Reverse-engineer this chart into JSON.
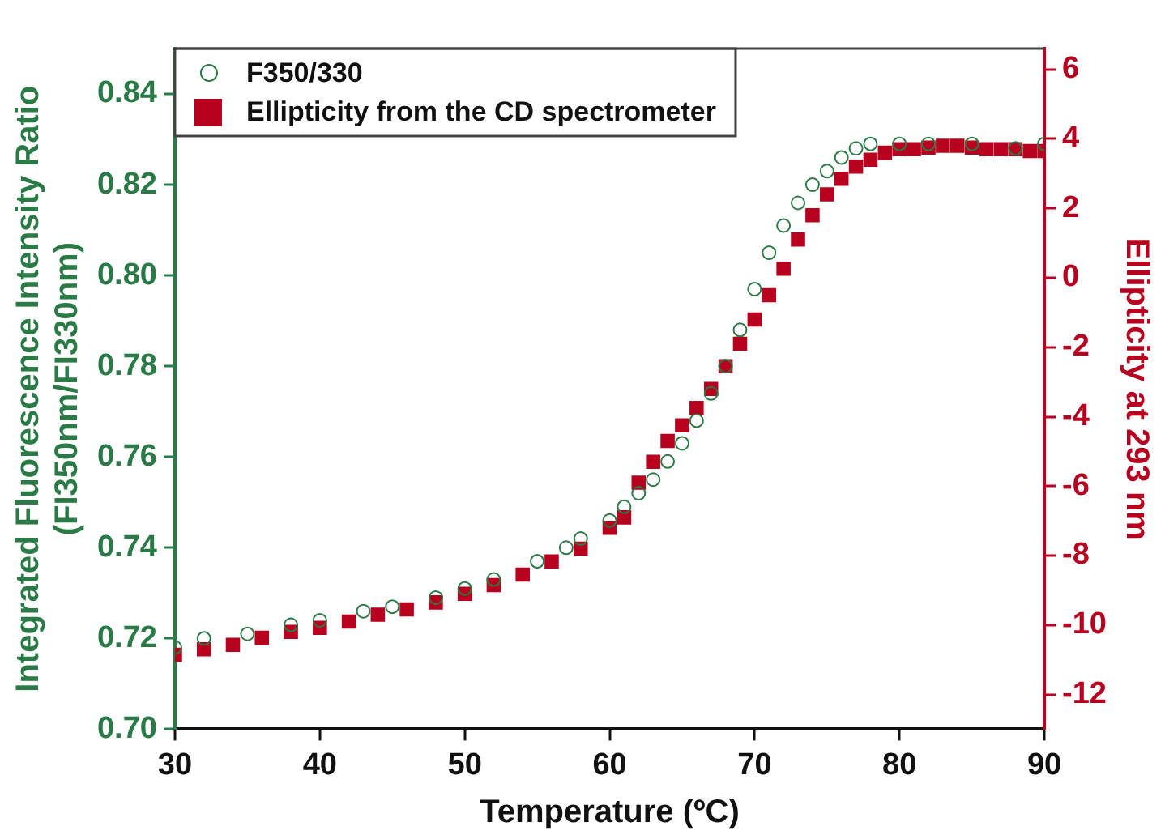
{
  "chart_data": {
    "type": "scatter",
    "xlabel": "Temperature (ºC)",
    "ylabel": "Integrated Fluorescence Intensity Ratio\n(FI350nm/FI330nm)",
    "y2label": "Ellipticity at 293 nm",
    "xlim": [
      30,
      90
    ],
    "xticks": [
      30,
      40,
      50,
      60,
      70,
      80,
      90
    ],
    "ylim": [
      0.7,
      0.85
    ],
    "yticks": [
      {
        "value": 0.7,
        "label": "0.70"
      },
      0.72,
      0.74,
      0.76,
      0.78,
      {
        "value": 0.8,
        "label": "0.80"
      },
      0.82,
      0.84
    ],
    "y2lim": [
      -13,
      6.6
    ],
    "y2ticks": [
      -12,
      -10,
      -8,
      -6,
      -4,
      -2,
      0,
      2,
      4,
      6
    ],
    "grid": false,
    "legend": "top left",
    "series": [
      {
        "name": "F350/330",
        "color": "#2a7a45",
        "marker": "circle",
        "x": [
          30,
          32,
          35,
          38,
          40,
          43,
          45,
          48,
          50,
          52,
          55,
          57,
          58,
          60,
          61,
          62,
          63,
          64,
          65,
          66,
          67,
          68,
          69,
          70,
          71,
          72,
          73,
          74,
          75,
          76,
          77,
          78,
          80,
          82,
          85,
          88,
          90
        ],
        "values": [
          0.718,
          0.72,
          0.721,
          0.723,
          0.724,
          0.726,
          0.727,
          0.729,
          0.731,
          0.733,
          0.737,
          0.74,
          0.742,
          0.746,
          0.749,
          0.752,
          0.755,
          0.759,
          0.763,
          0.768,
          0.774,
          0.78,
          0.788,
          0.797,
          0.805,
          0.811,
          0.816,
          0.82,
          0.823,
          0.826,
          0.828,
          0.829,
          0.829,
          0.829,
          0.829,
          0.828,
          0.829
        ]
      },
      {
        "name": "Ellipticity from the CD spectrometer",
        "color": "#b8001f",
        "marker": "square",
        "axis": "y2",
        "x": [
          30,
          32,
          34,
          36,
          38,
          40,
          42,
          44,
          46,
          48,
          50,
          52,
          54,
          56,
          58,
          60,
          61,
          62,
          63,
          64,
          65,
          66,
          67,
          68,
          69,
          70,
          71,
          72,
          73,
          74,
          75,
          76,
          77,
          78,
          79,
          80,
          81,
          82,
          83,
          84,
          85,
          86,
          87,
          88,
          89,
          90
        ],
        "values": [
          -10.86,
          -10.7,
          -10.57,
          -10.37,
          -10.2,
          -10.08,
          -9.9,
          -9.7,
          -9.55,
          -9.35,
          -9.1,
          -8.85,
          -8.55,
          -8.17,
          -7.8,
          -7.2,
          -6.9,
          -5.9,
          -5.3,
          -4.7,
          -4.25,
          -3.75,
          -3.2,
          -2.55,
          -1.9,
          -1.2,
          -0.5,
          0.26,
          1.1,
          1.8,
          2.4,
          2.85,
          3.2,
          3.4,
          3.6,
          3.7,
          3.7,
          3.75,
          3.8,
          3.8,
          3.75,
          3.7,
          3.7,
          3.7,
          3.65,
          3.65
        ]
      }
    ]
  }
}
